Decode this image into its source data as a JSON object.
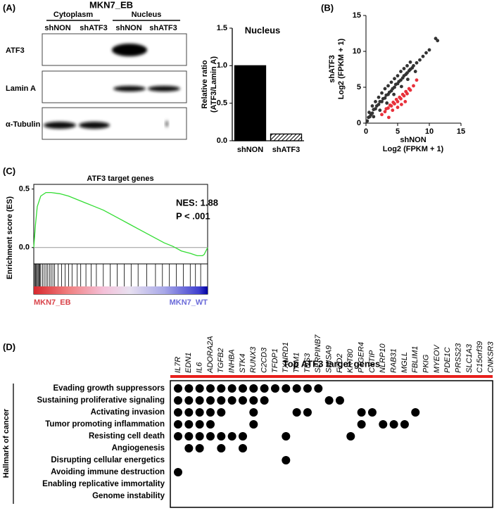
{
  "panel_labels": [
    "(A)",
    "(B)",
    "(C)",
    "(D)"
  ],
  "western_blot": {
    "title": "MKN7_EB",
    "fractions": [
      "Cytoplasm",
      "Nucleus"
    ],
    "lanes": [
      "shNON",
      "shATF3",
      "shNON",
      "shATF3"
    ],
    "proteins": [
      "ATF3",
      "Lamin A",
      "α-Tubulin"
    ]
  },
  "chart_data": [
    {
      "type": "bar",
      "title": "Nucleus",
      "ylabel": [
        "Relative ratio",
        "(ATF3/Lamin A)"
      ],
      "categories": [
        "shNON",
        "shATF3"
      ],
      "values": [
        1.0,
        0.09
      ],
      "color": "#000000",
      "hatched": [
        false,
        true
      ],
      "ylim": [
        0,
        1.5
      ],
      "yticks": [
        {
          "value": 0,
          "label": "0.0"
        },
        0.5,
        {
          "value": 1,
          "label": "1.0"
        },
        1.5
      ]
    },
    {
      "type": "scatter",
      "xlabel": [
        "shNON",
        "Log2 (FPKM + 1)"
      ],
      "ylabel": [
        "shATF3",
        "Log2 (FPKM + 1)"
      ],
      "series": [
        {
          "color": "#333333",
          "x": [
            0.2,
            0.4,
            0.6,
            0.8,
            1.0,
            1.2,
            1.5,
            1.7,
            2.0,
            2.2,
            2.5,
            2.7,
            3.0,
            3.2,
            3.5,
            3.7,
            4.0,
            4.2,
            4.5,
            4.7,
            5.0,
            5.2,
            5.5,
            5.8,
            6.0,
            6.3,
            6.5,
            6.8,
            7.0,
            7.3,
            7.5,
            8.0,
            8.5,
            9.0,
            9.5,
            10.0,
            11.0,
            11.3,
            0.5,
            1.0,
            1.5,
            2.0,
            2.5,
            3.0,
            3.5,
            4.0,
            4.5,
            5.0,
            5.5,
            6.0,
            6.5,
            7.0,
            1.2,
            2.2,
            3.3,
            4.4,
            5.6,
            6.6,
            7.8
          ],
          "y": [
            0.3,
            0.8,
            0.9,
            1.2,
            1.4,
            1.9,
            2.0,
            2.4,
            2.6,
            3.0,
            3.0,
            3.4,
            3.5,
            3.9,
            4.0,
            4.3,
            4.5,
            4.8,
            5.0,
            5.4,
            5.5,
            5.8,
            6.0,
            6.3,
            6.6,
            6.8,
            7.0,
            7.3,
            7.5,
            7.7,
            8.0,
            8.4,
            8.8,
            9.3,
            9.8,
            10.2,
            11.8,
            11.5,
            1.5,
            2.4,
            3.0,
            3.6,
            4.2,
            4.8,
            5.2,
            5.7,
            6.2,
            6.6,
            7.2,
            7.6,
            8.0,
            8.5,
            0.9,
            1.8,
            2.8,
            4.0,
            5.1,
            6.1,
            7.2
          ]
        },
        {
          "color": "#e8303a",
          "x": [
            2.5,
            3.0,
            3.2,
            3.5,
            3.8,
            4.0,
            4.3,
            4.5,
            4.8,
            5.0,
            5.3,
            5.5,
            5.8,
            6.0,
            6.3,
            6.5,
            6.8,
            7.0,
            7.5,
            8.0,
            4.2,
            5.0,
            5.6,
            6.2,
            3.6
          ],
          "y": [
            1.2,
            1.6,
            2.0,
            2.1,
            2.5,
            2.4,
            2.9,
            2.7,
            3.3,
            3.0,
            3.6,
            3.4,
            4.0,
            3.8,
            4.4,
            4.1,
            4.8,
            4.6,
            5.2,
            6.0,
            1.8,
            2.2,
            2.6,
            3.0,
            0.8
          ]
        }
      ],
      "xlim": [
        0,
        15
      ],
      "ylim": [
        0,
        15
      ],
      "xticks": [
        0,
        5,
        10,
        15
      ],
      "yticks": [
        0,
        5,
        10,
        15
      ]
    },
    {
      "type": "line",
      "title": "ATF3 target genes",
      "ylabel": "Enrichment score (ES)",
      "x": [
        0,
        1,
        2,
        4,
        7,
        10,
        15,
        20,
        25,
        30,
        35,
        40,
        45,
        50,
        55,
        60,
        65,
        70,
        75,
        80,
        85,
        90,
        94,
        97,
        98,
        100
      ],
      "values": [
        0,
        0.2,
        0.35,
        0.44,
        0.47,
        0.47,
        0.46,
        0.44,
        0.41,
        0.38,
        0.35,
        0.32,
        0.28,
        0.24,
        0.2,
        0.16,
        0.12,
        0.08,
        0.04,
        0.01,
        -0.03,
        -0.05,
        -0.07,
        -0.07,
        -0.06,
        0.0
      ],
      "color": "#33dd33",
      "xlim": [
        0,
        100
      ],
      "ylim": [
        -0.14,
        0.54
      ],
      "yticks": [
        {
          "value": 0,
          "label": "0.0"
        },
        0.5
      ],
      "annotations": [
        "NES: 1.88",
        "P < .001"
      ],
      "hits": [
        0.5,
        1,
        1.5,
        2,
        2.5,
        3,
        3.5,
        4,
        5,
        6,
        7,
        8,
        9,
        10,
        11,
        12,
        14,
        16,
        18,
        20,
        22,
        25,
        27,
        30,
        33,
        36,
        40,
        44,
        48,
        52,
        56,
        60,
        65,
        70,
        74,
        78,
        82,
        86,
        90,
        93,
        96
      ],
      "gradient_labels": [
        "MKN7_EB",
        "MKN7_WT"
      ]
    }
  ],
  "hallmark_matrix": {
    "title": "Top ATF3 target genes",
    "row_group_label": "Hallmark of cancer",
    "genes": [
      "IL7R",
      "EDN1",
      "IL6",
      "ADORA2A",
      "TGFB2",
      "INHBA",
      "STK4",
      "RUNX3",
      "C2CD3",
      "TFDP1",
      "TXNRD1",
      "TPM1",
      "TNS3",
      "SERPINB7",
      "SHISA9",
      "FZD2",
      "KRT80",
      "PTGER4",
      "CYTIP",
      "NLRP10",
      "RAB31",
      "MGLL",
      "FBLIM1",
      "PKIG",
      "MYEOV",
      "PDE1C",
      "PRSS23",
      "SLC1A3",
      "C15orf39",
      "CNKSR3"
    ],
    "hallmarks": [
      "Evading growth suppressors",
      "Sustaining proliferative signaling",
      "Activating invasion",
      "Tumor promoting inflammation",
      "Resisting cell death",
      "Angiogenesis",
      "Disrupting cellular energetics",
      "Avoiding immune destruction",
      "Enabling replicative immortality",
      "Genome instability"
    ],
    "dots": [
      [
        0,
        1,
        2,
        3,
        4,
        5,
        6,
        7,
        8,
        9,
        10,
        11,
        12,
        13
      ],
      [
        0,
        1,
        2,
        3,
        4,
        5,
        6,
        7,
        8,
        14,
        15
      ],
      [
        0,
        1,
        2,
        3,
        4,
        7,
        11,
        12,
        17,
        18,
        22
      ],
      [
        0,
        1,
        2,
        3,
        7,
        17,
        19,
        20,
        21
      ],
      [
        0,
        1,
        2,
        3,
        4,
        5,
        6,
        10,
        16
      ],
      [
        1,
        2,
        4,
        6
      ],
      [
        10
      ],
      [
        0
      ],
      [],
      []
    ]
  }
}
